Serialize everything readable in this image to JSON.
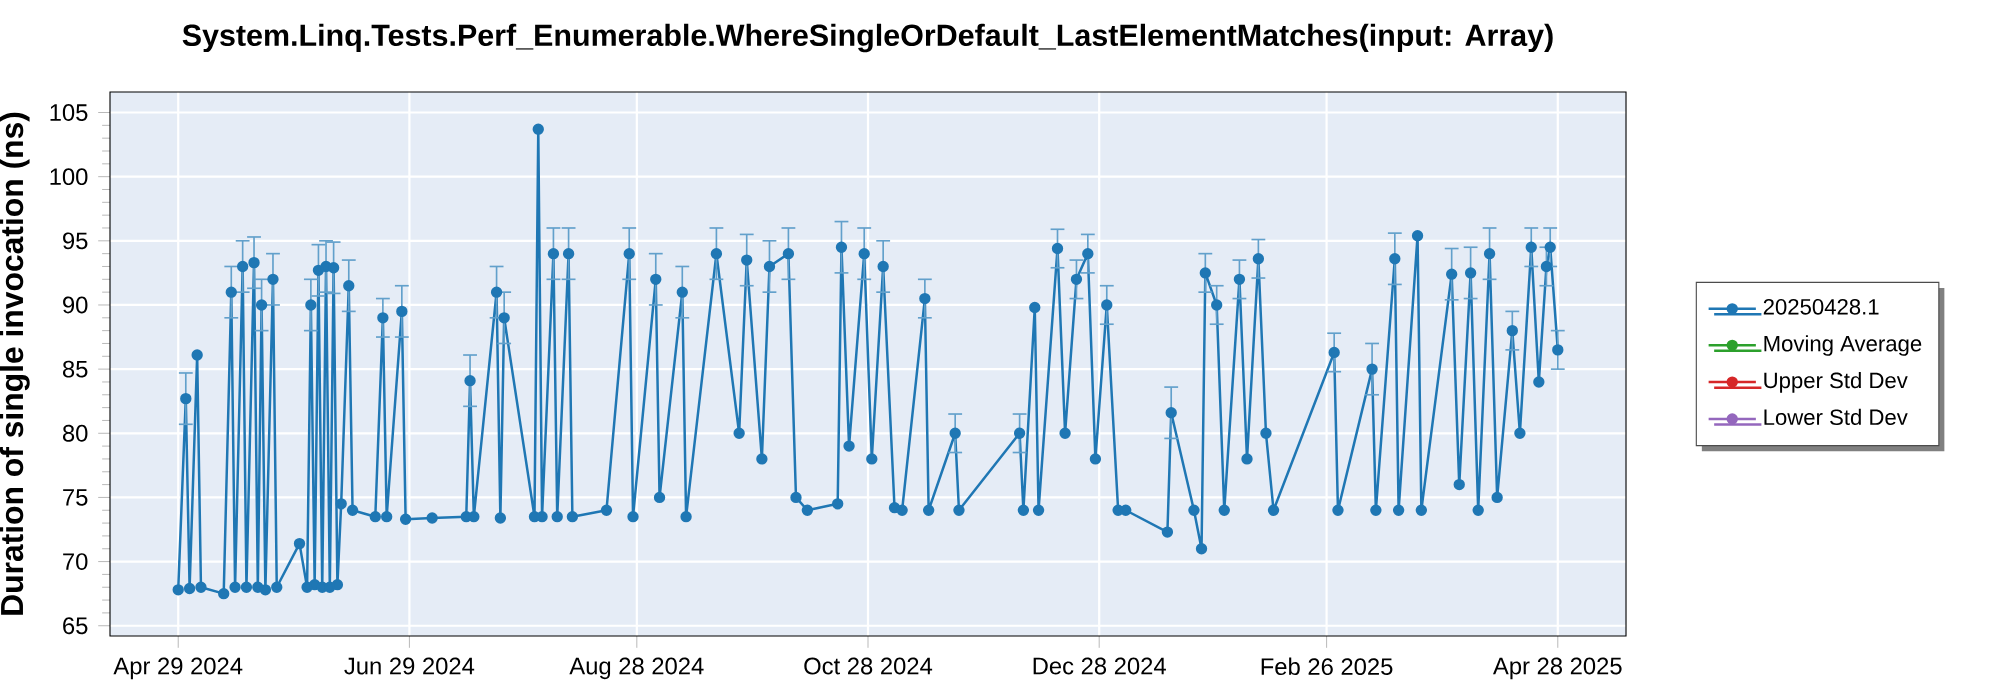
{
  "chart_data": {
    "type": "line",
    "title": "System.Linq.Tests.Perf_Enumerable.WhereSingleOrDefault_LastElementMatches(input: Array)",
    "ylabel": "Duration of single invocation (ns)",
    "x": [
      "2024-04-29",
      "2024-05-01",
      "2024-05-02",
      "2024-05-04",
      "2024-05-05",
      "2024-05-11",
      "2024-05-13",
      "2024-05-14",
      "2024-05-16",
      "2024-05-17",
      "2024-05-19",
      "2024-05-20",
      "2024-05-21",
      "2024-05-22",
      "2024-05-24",
      "2024-05-25",
      "2024-05-31",
      "2024-06-02",
      "2024-06-03",
      "2024-06-04",
      "2024-06-05",
      "2024-06-06",
      "2024-06-07",
      "2024-06-08",
      "2024-06-09",
      "2024-06-10",
      "2024-06-11",
      "2024-06-13",
      "2024-06-14",
      "2024-06-20",
      "2024-06-22",
      "2024-06-23",
      "2024-06-27",
      "2024-06-28",
      "2024-07-05",
      "2024-07-14",
      "2024-07-15",
      "2024-07-16",
      "2024-07-22",
      "2024-07-23",
      "2024-07-24",
      "2024-08-01",
      "2024-08-02",
      "2024-08-03",
      "2024-08-06",
      "2024-08-07",
      "2024-08-10",
      "2024-08-11",
      "2024-08-20",
      "2024-08-26",
      "2024-08-27",
      "2024-09-02",
      "2024-09-03",
      "2024-09-09",
      "2024-09-10",
      "2024-09-18",
      "2024-09-24",
      "2024-09-26",
      "2024-09-30",
      "2024-10-02",
      "2024-10-07",
      "2024-10-09",
      "2024-10-12",
      "2024-10-20",
      "2024-10-21",
      "2024-10-23",
      "2024-10-27",
      "2024-10-29",
      "2024-11-01",
      "2024-11-04",
      "2024-11-06",
      "2024-11-12",
      "2024-11-13",
      "2024-11-20",
      "2024-11-21",
      "2024-12-07",
      "2024-12-08",
      "2024-12-11",
      "2024-12-12",
      "2024-12-17",
      "2024-12-19",
      "2024-12-22",
      "2024-12-25",
      "2024-12-27",
      "2024-12-30",
      "2025-01-02",
      "2025-01-04",
      "2025-01-15",
      "2025-01-16",
      "2025-01-22",
      "2025-01-24",
      "2025-01-25",
      "2025-01-28",
      "2025-01-30",
      "2025-02-03",
      "2025-02-05",
      "2025-02-08",
      "2025-02-10",
      "2025-02-12",
      "2025-02-28",
      "2025-03-01",
      "2025-03-10",
      "2025-03-11",
      "2025-03-16",
      "2025-03-17",
      "2025-03-22",
      "2025-03-23",
      "2025-03-31",
      "2025-04-02",
      "2025-04-05",
      "2025-04-07",
      "2025-04-10",
      "2025-04-12",
      "2025-04-16",
      "2025-04-18",
      "2025-04-21",
      "2025-04-23",
      "2025-04-25",
      "2025-04-26",
      "2025-04-28"
    ],
    "series": [
      {
        "name": "20250428.1",
        "color": "#1f77b4",
        "values": [
          67.8,
          82.7,
          67.9,
          86.1,
          68,
          67.5,
          91,
          68,
          93,
          68,
          93.3,
          68,
          90,
          67.8,
          92,
          68,
          71.4,
          68,
          90,
          68.2,
          92.7,
          68,
          93,
          68,
          92.9,
          68.2,
          74.5,
          91.5,
          74,
          73.5,
          89,
          73.5,
          89.5,
          73.3,
          73.4,
          73.5,
          84.1,
          73.5,
          91,
          73.4,
          89,
          73.5,
          103.7,
          73.5,
          94,
          73.5,
          94,
          73.5,
          74,
          94,
          73.5,
          92,
          75,
          91,
          73.5,
          94,
          80,
          93.5,
          78,
          93,
          94,
          75,
          74,
          74.5,
          94.5,
          79,
          94,
          78,
          93,
          74.2,
          74,
          90.5,
          74,
          80,
          74,
          80,
          74,
          89.8,
          74,
          94.4,
          80,
          92,
          94,
          78,
          90,
          74,
          74,
          72.3,
          81.6,
          74,
          71,
          92.5,
          90,
          74,
          92,
          78,
          93.6,
          80,
          74,
          86.3,
          74,
          85,
          74,
          93.6,
          74,
          95.4,
          74,
          92.4,
          76,
          92.5,
          74,
          94,
          75,
          88,
          80,
          94.5,
          84,
          93,
          94.5,
          86.5
        ],
        "errors": [
          null,
          2,
          null,
          null,
          null,
          null,
          2,
          null,
          2,
          null,
          2,
          null,
          2,
          null,
          2,
          null,
          null,
          null,
          2,
          null,
          2,
          null,
          2,
          null,
          2,
          null,
          null,
          2,
          null,
          null,
          1.5,
          null,
          2,
          null,
          null,
          null,
          2,
          null,
          2,
          null,
          2,
          null,
          null,
          null,
          2,
          null,
          2,
          null,
          null,
          2,
          null,
          2,
          null,
          2,
          null,
          2,
          null,
          2,
          null,
          2,
          2,
          null,
          null,
          null,
          2,
          null,
          2,
          null,
          2,
          null,
          null,
          1.5,
          null,
          1.5,
          null,
          1.5,
          null,
          null,
          null,
          1.5,
          null,
          1.5,
          1.5,
          null,
          1.5,
          null,
          null,
          null,
          2,
          null,
          null,
          1.5,
          1.5,
          null,
          1.5,
          null,
          1.5,
          null,
          null,
          1.5,
          null,
          2,
          null,
          2,
          null,
          null,
          null,
          2,
          null,
          2,
          null,
          2,
          null,
          1.5,
          null,
          1.5,
          null,
          1.5,
          1.5,
          1.5
        ]
      },
      {
        "name": "Moving Average",
        "color": "#2ca02c",
        "values": [
          null,
          null,
          null,
          null,
          null,
          null,
          null,
          null,
          null,
          null,
          null,
          null,
          null,
          null,
          null,
          null,
          null,
          null,
          null,
          null,
          null,
          null,
          null,
          null,
          null,
          null,
          null,
          null,
          null,
          null,
          null,
          null,
          null,
          null,
          null,
          null,
          null,
          null,
          null,
          null,
          null,
          null,
          null,
          null,
          null,
          null,
          null,
          null,
          null,
          null,
          null,
          null,
          null,
          null,
          null,
          null,
          null,
          null,
          null,
          null,
          null,
          null,
          null,
          null,
          null,
          null,
          null,
          null,
          null,
          null,
          null,
          null,
          null,
          null,
          null,
          null,
          null,
          null,
          null,
          null,
          null,
          null,
          null,
          null,
          null,
          null,
          null,
          null,
          null,
          null,
          null,
          null,
          null,
          null,
          null,
          null,
          null,
          null,
          null,
          null,
          null,
          null,
          null,
          null,
          null,
          null,
          null,
          null,
          null,
          null,
          null,
          null,
          null,
          null,
          null,
          null,
          null,
          null,
          null,
          null
        ]
      },
      {
        "name": "Upper Std Dev",
        "color": "#d62728",
        "values": [
          null,
          null,
          null,
          null,
          null,
          null,
          null,
          null,
          null,
          null,
          null,
          null,
          null,
          null,
          null,
          null,
          null,
          null,
          null,
          null,
          null,
          null,
          null,
          null,
          null,
          null,
          null,
          null,
          null,
          null,
          null,
          null,
          null,
          null,
          null,
          null,
          null,
          null,
          null,
          null,
          null,
          null,
          null,
          null,
          null,
          null,
          null,
          null,
          null,
          null,
          null,
          null,
          null,
          null,
          null,
          null,
          null,
          null,
          null,
          null,
          null,
          null,
          null,
          null,
          null,
          null,
          null,
          null,
          null,
          null,
          null,
          null,
          null,
          null,
          null,
          null,
          null,
          null,
          null,
          null,
          null,
          null,
          null,
          null,
          null,
          null,
          null,
          null,
          null,
          null,
          null,
          null,
          null,
          null,
          null,
          null,
          null,
          null,
          null,
          null,
          null,
          null,
          null,
          null,
          null,
          null,
          null,
          null,
          null,
          null,
          null,
          null,
          null,
          null,
          null,
          null,
          null,
          null,
          null,
          null
        ]
      },
      {
        "name": "Lower Std Dev",
        "color": "#9467bd",
        "values": [
          null,
          null,
          null,
          null,
          null,
          null,
          null,
          null,
          null,
          null,
          null,
          null,
          null,
          null,
          null,
          null,
          null,
          null,
          null,
          null,
          null,
          null,
          null,
          null,
          null,
          null,
          null,
          null,
          null,
          null,
          null,
          null,
          null,
          null,
          null,
          null,
          null,
          null,
          null,
          null,
          null,
          null,
          null,
          null,
          null,
          null,
          null,
          null,
          null,
          null,
          null,
          null,
          null,
          null,
          null,
          null,
          null,
          null,
          null,
          null,
          null,
          null,
          null,
          null,
          null,
          null,
          null,
          null,
          null,
          null,
          null,
          null,
          null,
          null,
          null,
          null,
          null,
          null,
          null,
          null,
          null,
          null,
          null,
          null,
          null,
          null,
          null,
          null,
          null,
          null,
          null,
          null,
          null,
          null,
          null,
          null,
          null,
          null,
          null,
          null,
          null,
          null,
          null,
          null,
          null,
          null,
          null,
          null,
          null,
          null,
          null,
          null,
          null,
          null,
          null,
          null,
          null,
          null,
          null,
          null
        ]
      }
    ],
    "xlim": [
      "2024-04-11",
      "2025-05-16"
    ],
    "xticks": [
      {
        "value": "2024-04-29",
        "label": "Apr 29 2024"
      },
      {
        "value": "2024-06-29",
        "label": "Jun 29 2024"
      },
      {
        "value": "2024-08-28",
        "label": "Aug 28 2024"
      },
      {
        "value": "2024-10-28",
        "label": "Oct 28 2024"
      },
      {
        "value": "2024-12-28",
        "label": "Dec 28 2024"
      },
      {
        "value": "2025-02-26",
        "label": "Feb 26 2025"
      },
      {
        "value": "2025-04-28",
        "label": "Apr 28 2025"
      }
    ],
    "ylim": [
      64.2,
      106.6
    ],
    "yticks": [
      65,
      70,
      75,
      80,
      85,
      90,
      95,
      100,
      105
    ],
    "grid": true,
    "legend": "right",
    "marker": "circle",
    "line_style": "solid"
  }
}
